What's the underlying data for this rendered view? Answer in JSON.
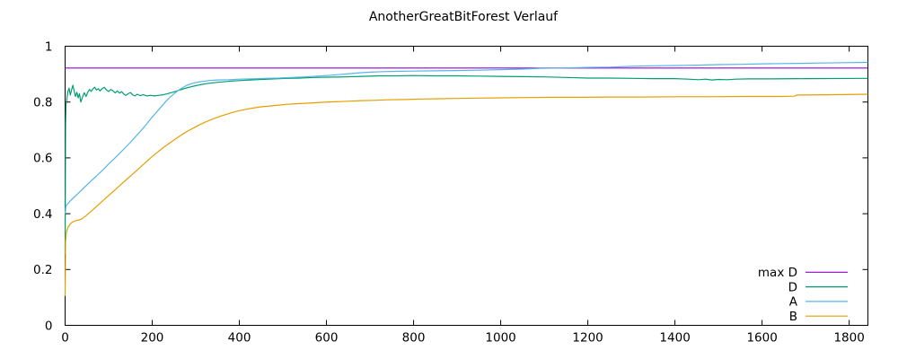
{
  "chart_data": {
    "type": "line",
    "title": "AnotherGreatBitForest Verlauf",
    "xlabel": "",
    "ylabel": "",
    "xlim": [
      0,
      1843
    ],
    "ylim": [
      0,
      1
    ],
    "grid": false,
    "legend_position": "inside-bottom-right",
    "x_ticks": [
      0,
      200,
      400,
      600,
      800,
      1000,
      1200,
      1400,
      1600,
      1800
    ],
    "x_tick_labels": [
      "0",
      "200",
      "400",
      "600",
      "800",
      "1000",
      "1200",
      "1400",
      "1600",
      "1800"
    ],
    "y_ticks": [
      0,
      0.2,
      0.4,
      0.6,
      0.8,
      1
    ],
    "y_tick_labels": [
      "0",
      "0.2",
      "0.4",
      "0.6",
      "0.8",
      "1"
    ],
    "series": [
      {
        "name": "max D",
        "color": "#9400d3",
        "points": [
          [
            0,
            0.922
          ],
          [
            1843,
            0.922
          ]
        ]
      },
      {
        "name": "D",
        "color": "#009e73",
        "points": [
          [
            0,
            0.255
          ],
          [
            1,
            0.72
          ],
          [
            2,
            0.79
          ],
          [
            4,
            0.81
          ],
          [
            6,
            0.835
          ],
          [
            9,
            0.85
          ],
          [
            12,
            0.825
          ],
          [
            15,
            0.845
          ],
          [
            18,
            0.86
          ],
          [
            21,
            0.838
          ],
          [
            24,
            0.82
          ],
          [
            27,
            0.835
          ],
          [
            30,
            0.815
          ],
          [
            33,
            0.83
          ],
          [
            36,
            0.8
          ],
          [
            40,
            0.818
          ],
          [
            44,
            0.833
          ],
          [
            48,
            0.82
          ],
          [
            52,
            0.835
          ],
          [
            56,
            0.845
          ],
          [
            60,
            0.838
          ],
          [
            64,
            0.847
          ],
          [
            68,
            0.853
          ],
          [
            72,
            0.843
          ],
          [
            76,
            0.848
          ],
          [
            80,
            0.84
          ],
          [
            85,
            0.848
          ],
          [
            90,
            0.853
          ],
          [
            95,
            0.843
          ],
          [
            100,
            0.838
          ],
          [
            105,
            0.845
          ],
          [
            110,
            0.84
          ],
          [
            115,
            0.833
          ],
          [
            120,
            0.84
          ],
          [
            125,
            0.832
          ],
          [
            130,
            0.837
          ],
          [
            135,
            0.828
          ],
          [
            140,
            0.824
          ],
          [
            145,
            0.83
          ],
          [
            150,
            0.834
          ],
          [
            155,
            0.826
          ],
          [
            160,
            0.822
          ],
          [
            166,
            0.828
          ],
          [
            172,
            0.823
          ],
          [
            180,
            0.826
          ],
          [
            188,
            0.822
          ],
          [
            196,
            0.824
          ],
          [
            205,
            0.822
          ],
          [
            215,
            0.824
          ],
          [
            225,
            0.826
          ],
          [
            235,
            0.83
          ],
          [
            245,
            0.834
          ],
          [
            255,
            0.839
          ],
          [
            265,
            0.844
          ],
          [
            275,
            0.849
          ],
          [
            285,
            0.853
          ],
          [
            295,
            0.857
          ],
          [
            310,
            0.862
          ],
          [
            325,
            0.866
          ],
          [
            340,
            0.869
          ],
          [
            360,
            0.872
          ],
          [
            380,
            0.875
          ],
          [
            400,
            0.877
          ],
          [
            425,
            0.879
          ],
          [
            450,
            0.881
          ],
          [
            480,
            0.883
          ],
          [
            510,
            0.885
          ],
          [
            540,
            0.886
          ],
          [
            570,
            0.888
          ],
          [
            600,
            0.889
          ],
          [
            640,
            0.89
          ],
          [
            680,
            0.892
          ],
          [
            720,
            0.894
          ],
          [
            760,
            0.894
          ],
          [
            800,
            0.895
          ],
          [
            850,
            0.894
          ],
          [
            900,
            0.894
          ],
          [
            950,
            0.893
          ],
          [
            1000,
            0.892
          ],
          [
            1050,
            0.891
          ],
          [
            1100,
            0.89
          ],
          [
            1150,
            0.888
          ],
          [
            1200,
            0.886
          ],
          [
            1250,
            0.886
          ],
          [
            1300,
            0.885
          ],
          [
            1350,
            0.884
          ],
          [
            1400,
            0.884
          ],
          [
            1430,
            0.882
          ],
          [
            1455,
            0.88
          ],
          [
            1470,
            0.882
          ],
          [
            1485,
            0.879
          ],
          [
            1500,
            0.881
          ],
          [
            1520,
            0.88
          ],
          [
            1540,
            0.882
          ],
          [
            1570,
            0.883
          ],
          [
            1620,
            0.883
          ],
          [
            1700,
            0.884
          ],
          [
            1843,
            0.885
          ]
        ]
      },
      {
        "name": "A",
        "color": "#56b4e9",
        "points": [
          [
            0,
            0.4
          ],
          [
            2,
            0.428
          ],
          [
            10,
            0.443
          ],
          [
            20,
            0.458
          ],
          [
            30,
            0.473
          ],
          [
            40,
            0.488
          ],
          [
            50,
            0.503
          ],
          [
            60,
            0.518
          ],
          [
            70,
            0.532
          ],
          [
            80,
            0.547
          ],
          [
            90,
            0.562
          ],
          [
            100,
            0.578
          ],
          [
            110,
            0.593
          ],
          [
            120,
            0.608
          ],
          [
            130,
            0.624
          ],
          [
            140,
            0.64
          ],
          [
            150,
            0.656
          ],
          [
            160,
            0.673
          ],
          [
            170,
            0.69
          ],
          [
            180,
            0.708
          ],
          [
            190,
            0.727
          ],
          [
            200,
            0.746
          ],
          [
            210,
            0.764
          ],
          [
            220,
            0.782
          ],
          [
            230,
            0.8
          ],
          [
            240,
            0.816
          ],
          [
            250,
            0.83
          ],
          [
            260,
            0.842
          ],
          [
            270,
            0.852
          ],
          [
            280,
            0.86
          ],
          [
            290,
            0.866
          ],
          [
            300,
            0.87
          ],
          [
            315,
            0.874
          ],
          [
            330,
            0.877
          ],
          [
            350,
            0.879
          ],
          [
            375,
            0.88
          ],
          [
            400,
            0.882
          ],
          [
            430,
            0.883
          ],
          [
            460,
            0.885
          ],
          [
            490,
            0.886
          ],
          [
            520,
            0.888
          ],
          [
            550,
            0.89
          ],
          [
            580,
            0.893
          ],
          [
            610,
            0.896
          ],
          [
            640,
            0.9
          ],
          [
            670,
            0.904
          ],
          [
            700,
            0.907
          ],
          [
            730,
            0.909
          ],
          [
            760,
            0.91
          ],
          [
            800,
            0.911
          ],
          [
            850,
            0.912
          ],
          [
            900,
            0.913
          ],
          [
            950,
            0.914
          ],
          [
            1000,
            0.916
          ],
          [
            1050,
            0.918
          ],
          [
            1090,
            0.921
          ],
          [
            1140,
            0.922
          ],
          [
            1200,
            0.924
          ],
          [
            1250,
            0.925
          ],
          [
            1300,
            0.928
          ],
          [
            1350,
            0.93
          ],
          [
            1400,
            0.931
          ],
          [
            1450,
            0.932
          ],
          [
            1500,
            0.934
          ],
          [
            1550,
            0.935
          ],
          [
            1600,
            0.937
          ],
          [
            1650,
            0.938
          ],
          [
            1700,
            0.939
          ],
          [
            1735,
            0.94
          ],
          [
            1790,
            0.941
          ],
          [
            1843,
            0.942
          ]
        ]
      },
      {
        "name": "B",
        "color": "#e69f00",
        "points": [
          [
            0,
            0.105
          ],
          [
            1,
            0.3
          ],
          [
            3,
            0.335
          ],
          [
            7,
            0.352
          ],
          [
            11,
            0.362
          ],
          [
            16,
            0.369
          ],
          [
            22,
            0.374
          ],
          [
            30,
            0.377
          ],
          [
            38,
            0.381
          ],
          [
            46,
            0.39
          ],
          [
            54,
            0.401
          ],
          [
            62,
            0.412
          ],
          [
            70,
            0.423
          ],
          [
            80,
            0.437
          ],
          [
            90,
            0.451
          ],
          [
            100,
            0.465
          ],
          [
            110,
            0.479
          ],
          [
            120,
            0.493
          ],
          [
            130,
            0.507
          ],
          [
            140,
            0.521
          ],
          [
            150,
            0.535
          ],
          [
            160,
            0.549
          ],
          [
            170,
            0.563
          ],
          [
            180,
            0.577
          ],
          [
            190,
            0.591
          ],
          [
            200,
            0.605
          ],
          [
            212,
            0.62
          ],
          [
            224,
            0.635
          ],
          [
            236,
            0.649
          ],
          [
            248,
            0.662
          ],
          [
            260,
            0.675
          ],
          [
            272,
            0.687
          ],
          [
            284,
            0.698
          ],
          [
            296,
            0.708
          ],
          [
            308,
            0.718
          ],
          [
            320,
            0.727
          ],
          [
            332,
            0.735
          ],
          [
            344,
            0.742
          ],
          [
            356,
            0.749
          ],
          [
            370,
            0.756
          ],
          [
            385,
            0.763
          ],
          [
            400,
            0.769
          ],
          [
            415,
            0.774
          ],
          [
            430,
            0.778
          ],
          [
            450,
            0.783
          ],
          [
            470,
            0.786
          ],
          [
            490,
            0.789
          ],
          [
            510,
            0.792
          ],
          [
            530,
            0.794
          ],
          [
            560,
            0.796
          ],
          [
            590,
            0.799
          ],
          [
            620,
            0.801
          ],
          [
            650,
            0.803
          ],
          [
            680,
            0.805
          ],
          [
            710,
            0.806
          ],
          [
            740,
            0.808
          ],
          [
            780,
            0.809
          ],
          [
            820,
            0.811
          ],
          [
            860,
            0.812
          ],
          [
            900,
            0.813
          ],
          [
            950,
            0.814
          ],
          [
            1000,
            0.815
          ],
          [
            1060,
            0.816
          ],
          [
            1120,
            0.817
          ],
          [
            1180,
            0.817
          ],
          [
            1250,
            0.818
          ],
          [
            1320,
            0.818
          ],
          [
            1400,
            0.819
          ],
          [
            1480,
            0.819
          ],
          [
            1560,
            0.82
          ],
          [
            1640,
            0.82
          ],
          [
            1674,
            0.821
          ],
          [
            1680,
            0.825
          ],
          [
            1750,
            0.826
          ],
          [
            1843,
            0.828
          ]
        ]
      }
    ]
  }
}
